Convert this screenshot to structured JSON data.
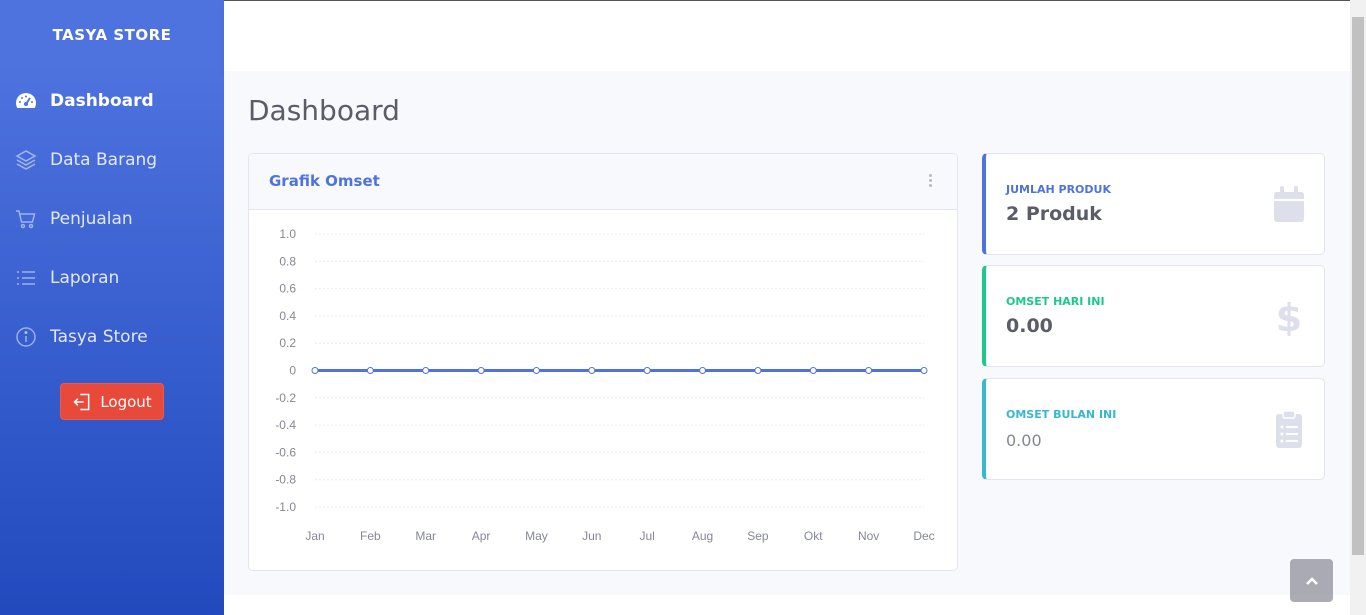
{
  "sidebar": {
    "brand": "TASYA STORE",
    "items": [
      {
        "label": "Dashboard",
        "icon": "tachometer-icon",
        "active": true
      },
      {
        "label": "Data Barang",
        "icon": "layers-icon",
        "active": false
      },
      {
        "label": "Penjualan",
        "icon": "cart-icon",
        "active": false
      },
      {
        "label": "Laporan",
        "icon": "list-icon",
        "active": false
      },
      {
        "label": "Tasya Store",
        "icon": "info-icon",
        "active": false
      }
    ],
    "logout_label": "Logout"
  },
  "main": {
    "title": "Dashboard"
  },
  "chart_card": {
    "title": "Grafik Omset"
  },
  "chart_data": {
    "type": "line",
    "x": [
      "Jan",
      "Feb",
      "Mar",
      "Apr",
      "May",
      "Jun",
      "Jul",
      "Aug",
      "Sep",
      "Okt",
      "Nov",
      "Dec"
    ],
    "series": [
      {
        "values": [
          0,
          0,
          0,
          0,
          0,
          0,
          0,
          0,
          0,
          0,
          0,
          0
        ],
        "color": "#4e73df"
      }
    ],
    "ylim": [
      -1.0,
      1.0
    ],
    "yticks": [
      "1.0",
      "0.8",
      "0.6",
      "0.4",
      "0.2",
      "0",
      "-0.2",
      "-0.4",
      "-0.6",
      "-0.8",
      "-1.0"
    ],
    "grid": true
  },
  "stats": [
    {
      "label": "JUMLAH PRODUK",
      "value": "2 Produk",
      "color": "#4e73df",
      "icon": "calendar-icon"
    },
    {
      "label": "OMSET HARI INI",
      "value": "0.00",
      "color": "#1cc88a",
      "icon": "dollar-icon"
    },
    {
      "label": "OMSET BULAN INI",
      "value": "0.00",
      "color": "#36b9cc",
      "icon": "clipboard-icon"
    }
  ]
}
